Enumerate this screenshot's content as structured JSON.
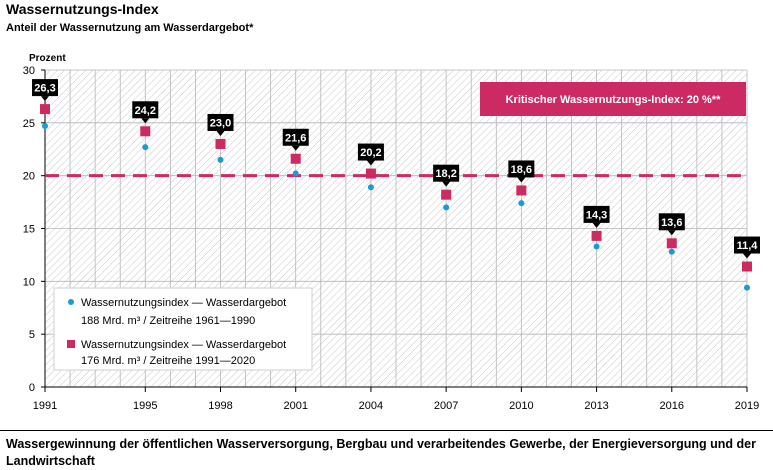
{
  "header": {
    "title": "Wassernutzungs-Index",
    "subtitle": "Anteil der Wassernutzung am Wasserdargebot*"
  },
  "footnote": "Wassergewinnung der öffentlichen Wasserversorgung, Bergbau und verarbeitendes Gewerbe, der Energieversorgung und der Landwirtschaft",
  "colors": {
    "primary_marker": "#cc2a62",
    "secondary_marker": "#1a9ad6",
    "label_bg": "#000000",
    "grid": "#b5b5b5"
  },
  "chart_data": {
    "type": "scatter",
    "ylabel": "Prozent",
    "ylim": [
      0,
      30
    ],
    "yticks": [
      0,
      5,
      10,
      15,
      20,
      25,
      30
    ],
    "xlim": [
      1991,
      2019
    ],
    "xticks": [
      "1991",
      "1995",
      "1998",
      "2001",
      "2004",
      "2007",
      "2010",
      "2013",
      "2016",
      "2019"
    ],
    "grid": true,
    "threshold": {
      "value": 20,
      "label": "Kritischer Wassernutzungs-Index: 20 %**"
    },
    "series": [
      {
        "name": "Wassernutzungsindex — Wasserdargebot 176 Mrd. m³ / Zeitreihe 1991—2020",
        "legend_lines": [
          "Wassernutzungsindex — Wasserdargebot",
          "176 Mrd. m³ / Zeitreihe 1991—2020"
        ],
        "marker": "square",
        "x": [
          1991,
          1995,
          1998,
          2001,
          2004,
          2007,
          2010,
          2013,
          2016,
          2019
        ],
        "values": [
          26.3,
          24.2,
          23.0,
          21.6,
          20.2,
          18.2,
          18.6,
          14.3,
          13.6,
          11.4
        ],
        "labels": [
          "26,3",
          "24,2",
          "23,0",
          "21,6",
          "20,2",
          "18,2",
          "18,6",
          "14,3",
          "13,6",
          "11,4"
        ]
      },
      {
        "name": "Wassernutzungsindex — Wasserdargebot 188 Mrd. m³ / Zeitreihe 1961—1990",
        "legend_lines": [
          "Wassernutzungsindex — Wasserdargebot",
          "188 Mrd. m³ / Zeitreihe 1961—1990"
        ],
        "marker": "circle",
        "x": [
          1991,
          1995,
          1998,
          2001,
          2004,
          2007,
          2010,
          2013,
          2016,
          2019
        ],
        "values": [
          24.7,
          22.7,
          21.5,
          20.2,
          18.9,
          17.0,
          17.4,
          13.3,
          12.8,
          9.4
        ]
      }
    ]
  }
}
